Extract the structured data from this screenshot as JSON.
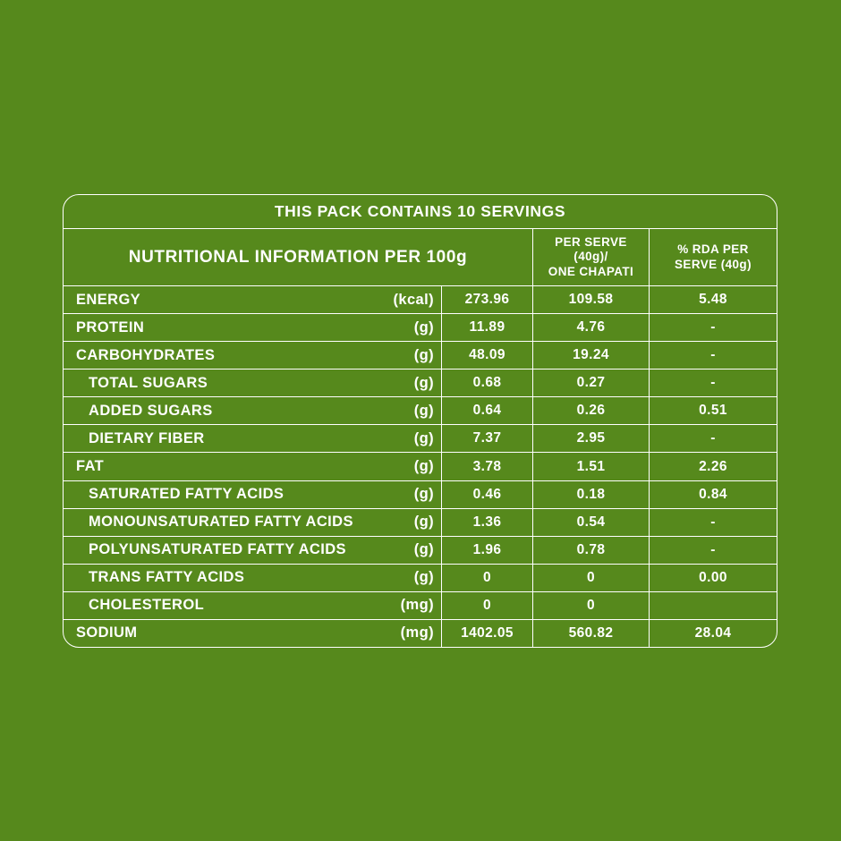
{
  "theme": {
    "background": "#56891c",
    "line_color": "#ffffff",
    "text_color": "#ffffff"
  },
  "banner": {
    "text": "THIS PACK CONTAINS 10 SERVINGS"
  },
  "table": {
    "header_main": "NUTRITIONAL INFORMATION PER 100g",
    "col_per_serve": "PER SERVE\n(40g)/\nONE CHAPATI",
    "col_rda": "% RDA PER\nSERVE (40g)",
    "rows": [
      {
        "name": "ENERGY",
        "unit": "(kcal)",
        "per_100g": "273.96",
        "per_serve": "109.58",
        "rda": "5.48",
        "indent": false
      },
      {
        "name": "PROTEIN",
        "unit": "(g)",
        "per_100g": "11.89",
        "per_serve": "4.76",
        "rda": "-",
        "indent": false
      },
      {
        "name": "CARBOHYDRATES",
        "unit": "(g)",
        "per_100g": "48.09",
        "per_serve": "19.24",
        "rda": "-",
        "indent": false
      },
      {
        "name": "TOTAL SUGARS",
        "unit": "(g)",
        "per_100g": "0.68",
        "per_serve": "0.27",
        "rda": "-",
        "indent": true
      },
      {
        "name": "ADDED SUGARS",
        "unit": "(g)",
        "per_100g": "0.64",
        "per_serve": "0.26",
        "rda": "0.51",
        "indent": true
      },
      {
        "name": "DIETARY FIBER",
        "unit": "(g)",
        "per_100g": "7.37",
        "per_serve": "2.95",
        "rda": "-",
        "indent": true
      },
      {
        "name": "FAT",
        "unit": "(g)",
        "per_100g": "3.78",
        "per_serve": "1.51",
        "rda": "2.26",
        "indent": false
      },
      {
        "name": "SATURATED FATTY ACIDS",
        "unit": "(g)",
        "per_100g": "0.46",
        "per_serve": "0.18",
        "rda": "0.84",
        "indent": true
      },
      {
        "name": "MONOUNSATURATED FATTY ACIDS",
        "unit": "(g)",
        "per_100g": "1.36",
        "per_serve": "0.54",
        "rda": "-",
        "indent": true
      },
      {
        "name": "POLYUNSATURATED FATTY ACIDS",
        "unit": "(g)",
        "per_100g": "1.96",
        "per_serve": "0.78",
        "rda": "-",
        "indent": true
      },
      {
        "name": "TRANS FATTY ACIDS",
        "unit": "(g)",
        "per_100g": "0",
        "per_serve": "0",
        "rda": "0.00",
        "indent": true
      },
      {
        "name": "CHOLESTEROL",
        "unit": "(mg)",
        "per_100g": "0",
        "per_serve": "0",
        "rda": "",
        "indent": true
      },
      {
        "name": "SODIUM",
        "unit": "(mg)",
        "per_100g": "1402.05",
        "per_serve": "560.82",
        "rda": "28.04",
        "indent": false
      }
    ]
  }
}
